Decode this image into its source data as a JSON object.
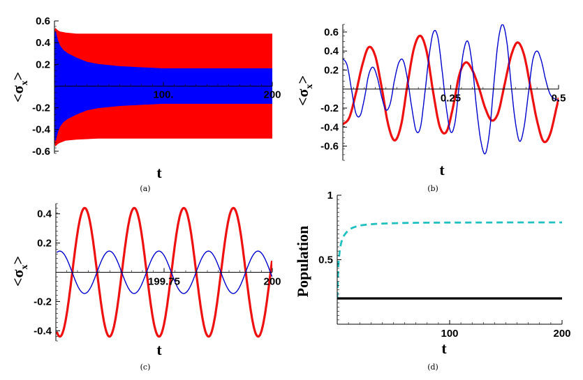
{
  "chart_data": [
    {
      "panel": "(a)",
      "type": "line",
      "xlabel": "t",
      "ylabel_base": "<σ",
      "ylabel_sub": "x",
      "ylabel_close": ">",
      "xlim": [
        0,
        200
      ],
      "ylim": [
        -0.62,
        0.6
      ],
      "x_ticks": [
        {
          "value": 100,
          "label": "100."
        },
        {
          "value": 200,
          "label": "200"
        }
      ],
      "y_ticks": [
        {
          "value": 0.6,
          "label": "0.6"
        },
        {
          "value": 0.4,
          "label": "0.4"
        },
        {
          "value": 0.2,
          "label": "0.2"
        },
        {
          "value": -0.2,
          "label": "-0.2"
        },
        {
          "value": -0.4,
          "label": "-0.4"
        },
        {
          "value": -0.6,
          "label": "-0.6"
        }
      ],
      "series": [
        {
          "color": "#ff0000",
          "style": "filled-envelope",
          "x": [
            0,
            1,
            3,
            5,
            10,
            20,
            40,
            60,
            100,
            150,
            200
          ],
          "upper": [
            0.5,
            0.53,
            0.51,
            0.5,
            0.49,
            0.48,
            0.48,
            0.48,
            0.48,
            0.48,
            0.48
          ],
          "lower": [
            -0.5,
            -0.55,
            -0.53,
            -0.52,
            -0.5,
            -0.49,
            -0.48,
            -0.48,
            -0.48,
            -0.48,
            -0.48
          ]
        },
        {
          "color": "#0000ff",
          "style": "filled-envelope",
          "x": [
            0,
            1,
            2,
            3,
            5,
            8,
            12,
            20,
            30,
            40,
            60,
            80,
            100,
            150,
            200
          ],
          "upper": [
            0.48,
            0.5,
            0.46,
            0.42,
            0.37,
            0.33,
            0.3,
            0.26,
            0.22,
            0.2,
            0.18,
            0.17,
            0.16,
            0.16,
            0.16
          ],
          "lower": [
            -0.48,
            -0.5,
            -0.46,
            -0.42,
            -0.37,
            -0.33,
            -0.3,
            -0.26,
            -0.22,
            -0.2,
            -0.18,
            -0.17,
            -0.16,
            -0.16,
            -0.16
          ]
        }
      ]
    },
    {
      "panel": "(b)",
      "type": "line",
      "xlabel": "t",
      "ylabel_base": "<σ",
      "ylabel_sub": "x",
      "ylabel_close": ">",
      "xlim": [
        0,
        0.5
      ],
      "ylim": [
        -0.75,
        0.68
      ],
      "x_ticks": [
        {
          "value": 0.25,
          "label": "0.25"
        },
        {
          "value": 0.5,
          "label": "0.5"
        }
      ],
      "y_ticks": [
        {
          "value": 0.6,
          "label": "0.6"
        },
        {
          "value": 0.4,
          "label": "0.4"
        },
        {
          "value": 0.2,
          "label": "0.2"
        },
        {
          "value": -0.2,
          "label": "-0.2"
        },
        {
          "value": -0.4,
          "label": "-0.4"
        },
        {
          "value": -0.6,
          "label": "-0.6"
        }
      ],
      "series": [
        {
          "color": "#ee1111",
          "style": "thick",
          "x": [
            0,
            0.015,
            0.03,
            0.045,
            0.06,
            0.075,
            0.09,
            0.105,
            0.12,
            0.135,
            0.15,
            0.165,
            0.18,
            0.195,
            0.21,
            0.225,
            0.24,
            0.255,
            0.27,
            0.285,
            0.3,
            0.315,
            0.33,
            0.345,
            0.36,
            0.375,
            0.39,
            0.405,
            0.42,
            0.435,
            0.45,
            0.465,
            0.48,
            0.495,
            0.5
          ],
          "y": [
            -0.37,
            -0.3,
            -0.05,
            0.25,
            0.44,
            0.35,
            0.02,
            -0.37,
            -0.54,
            -0.38,
            0.05,
            0.43,
            0.56,
            0.38,
            -0.05,
            -0.4,
            -0.45,
            -0.2,
            0.15,
            0.28,
            0.2,
            0.02,
            -0.2,
            -0.33,
            -0.25,
            0.05,
            0.35,
            0.49,
            0.36,
            0.02,
            -0.33,
            -0.55,
            -0.48,
            -0.2,
            -0.1
          ]
        },
        {
          "color": "#0000cc",
          "style": "thin",
          "x": [
            0,
            0.01,
            0.02,
            0.03,
            0.04,
            0.05,
            0.06,
            0.07,
            0.08,
            0.09,
            0.1,
            0.11,
            0.12,
            0.13,
            0.14,
            0.15,
            0.16,
            0.17,
            0.18,
            0.19,
            0.2,
            0.21,
            0.22,
            0.23,
            0.24,
            0.25,
            0.26,
            0.27,
            0.28,
            0.29,
            0.3,
            0.31,
            0.32,
            0.33,
            0.34,
            0.35,
            0.36,
            0.37,
            0.38,
            0.39,
            0.4,
            0.41,
            0.42,
            0.43,
            0.44,
            0.45,
            0.46,
            0.47,
            0.48,
            0.49,
            0.5
          ],
          "y": [
            0.32,
            0.25,
            0.0,
            -0.25,
            -0.28,
            -0.1,
            0.15,
            0.23,
            0.12,
            -0.08,
            -0.22,
            -0.15,
            0.1,
            0.28,
            0.3,
            0.1,
            -0.2,
            -0.44,
            -0.4,
            -0.05,
            0.35,
            0.6,
            0.55,
            0.2,
            -0.2,
            -0.45,
            -0.35,
            0.05,
            0.4,
            0.5,
            0.25,
            -0.2,
            -0.55,
            -0.68,
            -0.45,
            0.05,
            0.5,
            0.68,
            0.5,
            0.05,
            -0.35,
            -0.55,
            -0.4,
            -0.05,
            0.3,
            0.4,
            0.3,
            0.1,
            -0.05,
            -0.1,
            -0.12
          ]
        }
      ]
    },
    {
      "panel": "(c)",
      "type": "line",
      "xlabel": "t",
      "ylabel_base": "<σ",
      "ylabel_sub": "x",
      "ylabel_close": ">",
      "xlim": [
        199.5,
        200
      ],
      "ylim": [
        -0.47,
        0.47
      ],
      "x_ticks": [
        {
          "value": 199.75,
          "label": "199.75"
        },
        {
          "value": 200,
          "label": "200"
        }
      ],
      "y_ticks": [
        {
          "value": 0.4,
          "label": "0.4"
        },
        {
          "value": 0.2,
          "label": "0.2"
        },
        {
          "value": -0.2,
          "label": "-0.2"
        },
        {
          "value": -0.4,
          "label": "-0.4"
        }
      ],
      "series": [
        {
          "color": "#ee1111",
          "style": "thick",
          "amplitude": 0.44,
          "period": 0.1145,
          "x_first_max": 199.5666,
          "x_start": 199.503,
          "x_end": 199.999
        },
        {
          "color": "#0000cc",
          "style": "thin",
          "amplitude": 0.145,
          "period": 0.1145,
          "x_first_max": 199.509,
          "x_start": 199.503,
          "x_end": 199.999
        }
      ]
    },
    {
      "panel": "(d)",
      "type": "line",
      "xlabel": "t",
      "ylabel": "Population",
      "xlim": [
        0,
        200
      ],
      "ylim": [
        0,
        1
      ],
      "x_ticks": [
        {
          "value": 100,
          "label": "100"
        },
        {
          "value": 200,
          "label": "200"
        }
      ],
      "y_ticks": [
        {
          "value": 1,
          "label": "1"
        },
        {
          "value": 0.5,
          "label": "0.5"
        }
      ],
      "series": [
        {
          "color": "#20c0c0",
          "style": "dashed",
          "x": [
            0,
            1,
            2,
            3,
            5,
            8,
            12,
            16,
            20,
            30,
            40,
            60,
            80,
            100,
            150,
            200
          ],
          "y": [
            0.2,
            0.45,
            0.55,
            0.61,
            0.67,
            0.71,
            0.74,
            0.755,
            0.765,
            0.775,
            0.78,
            0.785,
            0.787,
            0.788,
            0.789,
            0.789
          ]
        },
        {
          "color": "#000000",
          "style": "thick",
          "x": [
            0,
            200
          ],
          "y": [
            0.2,
            0.2
          ]
        }
      ]
    }
  ],
  "captions": [
    "(a)",
    "(b)",
    "(c)",
    "(d)"
  ]
}
